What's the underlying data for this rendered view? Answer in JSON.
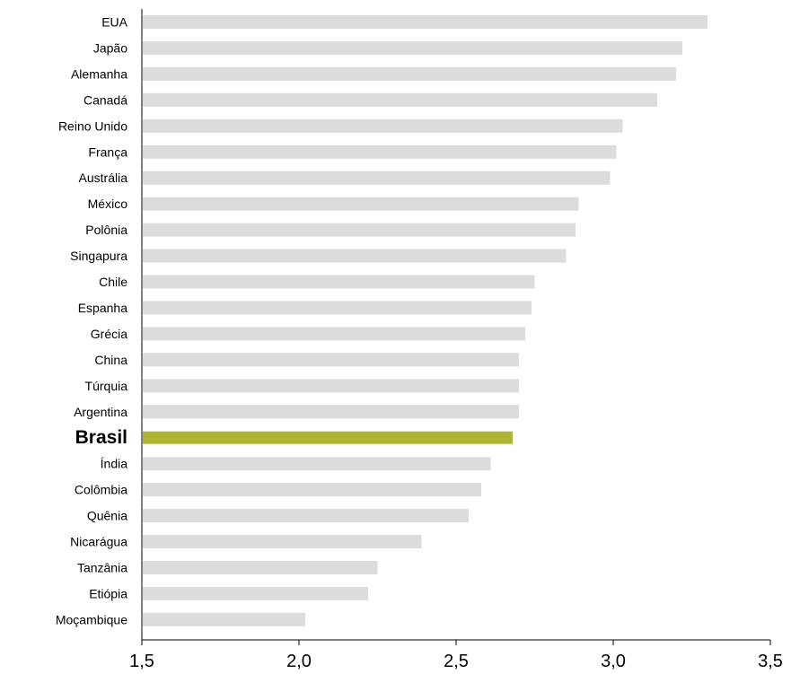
{
  "chart_data": {
    "type": "bar",
    "orientation": "horizontal",
    "categories": [
      "EUA",
      "Japão",
      "Alemanha",
      "Canadá",
      "Reino Unido",
      "França",
      "Austrália",
      "México",
      "Polônia",
      "Singapura",
      "Chile",
      "Espanha",
      "Grécia",
      "China",
      "Túrquia",
      "Argentina",
      "Brasil",
      "Índia",
      "Colômbia",
      "Quênia",
      "Nicarágua",
      "Tanzânia",
      "Etiópia",
      "Moçambique"
    ],
    "values": [
      3.3,
      3.22,
      3.2,
      3.14,
      3.03,
      3.01,
      2.99,
      2.89,
      2.88,
      2.85,
      2.75,
      2.74,
      2.72,
      2.7,
      2.7,
      2.7,
      2.68,
      2.61,
      2.58,
      2.54,
      2.39,
      2.25,
      2.22,
      2.02
    ],
    "highlight": "Brasil",
    "colors": {
      "bar": "#dcdcdc",
      "highlight": "#adb532",
      "axis": "#000000"
    },
    "xlim": [
      1.5,
      3.5
    ],
    "xticks": [
      "1,5",
      "2,0",
      "2,5",
      "3,0",
      "3,5"
    ],
    "grid": false,
    "legend": "none"
  }
}
